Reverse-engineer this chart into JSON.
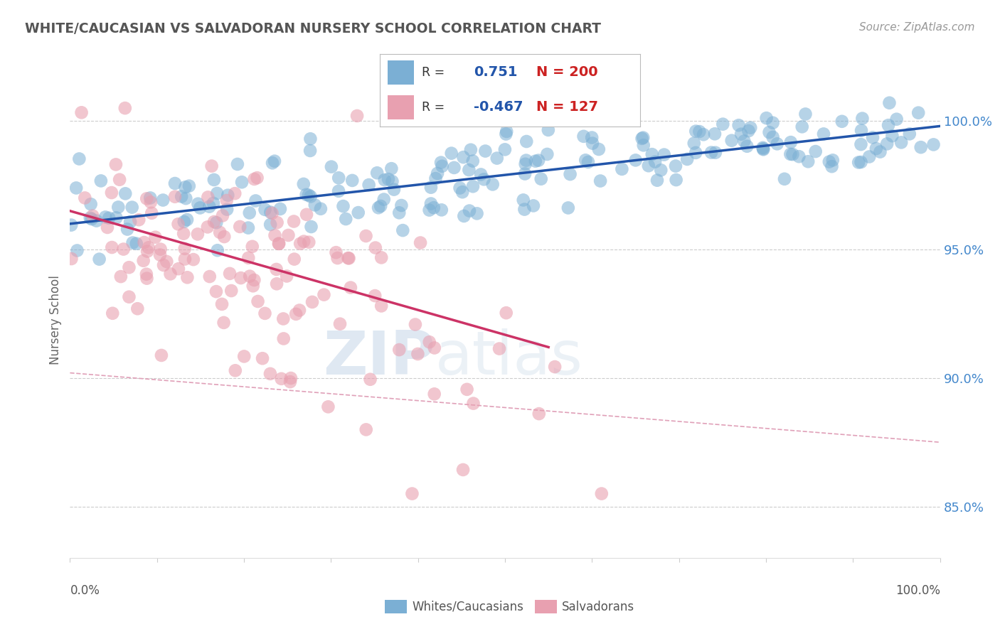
{
  "title": "WHITE/CAUCASIAN VS SALVADORAN NURSERY SCHOOL CORRELATION CHART",
  "source": "Source: ZipAtlas.com",
  "ylabel": "Nursery School",
  "legend_label1": "Whites/Caucasians",
  "legend_label2": "Salvadorans",
  "R1": 0.751,
  "N1": 200,
  "R2": -0.467,
  "N2": 127,
  "blue_color": "#7bafd4",
  "pink_color": "#e8a0b0",
  "blue_line_color": "#2255aa",
  "pink_line_color": "#cc3366",
  "dashed_line_color": "#e0a0b8",
  "watermark_zip": "ZIP",
  "watermark_atlas": "atlas",
  "y_ticks": [
    0.85,
    0.9,
    0.95,
    1.0
  ],
  "y_tick_labels": [
    "85.0%",
    "90.0%",
    "95.0%",
    "100.0%"
  ],
  "xmin": 0.0,
  "xmax": 1.0,
  "ymin": 0.83,
  "ymax": 1.015,
  "title_color": "#555555",
  "source_color": "#999999",
  "tick_color": "#4488cc",
  "grid_color": "#cccccc"
}
